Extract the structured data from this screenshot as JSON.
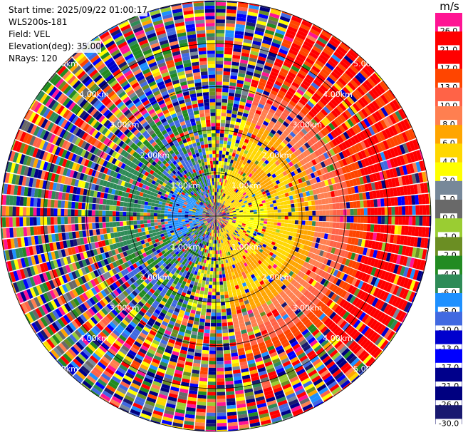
{
  "info": {
    "start_time": "Start time: 2025/09/22 01:00:17",
    "instrument": "WLS200s-181",
    "field": "Field: VEL",
    "elevation": "Elevation(deg): 35.00",
    "nrays": "NRays: 120"
  },
  "chart_data": {
    "type": "heatmap",
    "projection": "polar-ppi",
    "field": "VEL",
    "n_rays": 120,
    "range_rings": [
      {
        "label": "2.00km",
        "km": 2.0
      },
      {
        "label": "3.00km",
        "km": 3.0
      },
      {
        "label": "4.00km",
        "km": 4.0
      },
      {
        "label": "5.00km",
        "km": 5.0
      }
    ],
    "inner_ring_labels": [
      "1.00km",
      "1.00km",
      "1.00km",
      "1.00km"
    ],
    "max_range_km": 5.0,
    "colorbar": {
      "unit": "m/s",
      "levels": [
        {
          "label": "26.0",
          "color": "#ff1493"
        },
        {
          "label": "21.0",
          "color": "#ff0000"
        },
        {
          "label": "17.0",
          "color": "#ff0000"
        },
        {
          "label": "13.0",
          "color": "#ff4500"
        },
        {
          "label": "10.0",
          "color": "#ff6347"
        },
        {
          "label": "8.0",
          "color": "#ff7f50"
        },
        {
          "label": "6.0",
          "color": "#ffa500"
        },
        {
          "label": "4.0",
          "color": "#ffd700"
        },
        {
          "label": "2.0",
          "color": "#ffff00"
        },
        {
          "label": "1.0",
          "color": "#778899"
        },
        {
          "label": "0.0",
          "color": "#696969"
        },
        {
          "label": "-1.0",
          "color": "#9acd32"
        },
        {
          "label": "-2.0",
          "color": "#6b8e23"
        },
        {
          "label": "-4.0",
          "color": "#228b22"
        },
        {
          "label": "-6.0",
          "color": "#2e8b57"
        },
        {
          "label": "-8.0",
          "color": "#1e90ff"
        },
        {
          "label": "-10.0",
          "color": "#4169e1"
        },
        {
          "label": "-13.0",
          "color": "#0000cd"
        },
        {
          "label": "-17.0",
          "color": "#0000ff"
        },
        {
          "label": "-21.0",
          "color": "#00008b"
        },
        {
          "label": "-26.0",
          "color": "#000080"
        },
        {
          "label": "-30.0",
          "color": "#191970"
        }
      ]
    }
  }
}
